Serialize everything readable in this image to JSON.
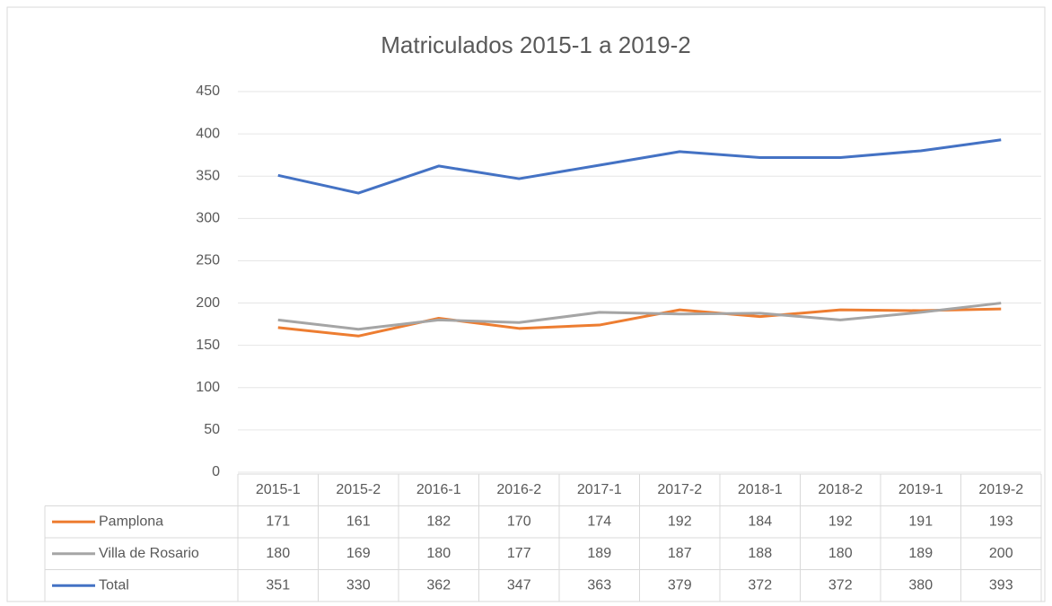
{
  "chart_data": {
    "type": "line",
    "title": "Matriculados 2015-1 a 2019-2",
    "categories": [
      "2015-1",
      "2015-2",
      "2016-1",
      "2016-2",
      "2017-1",
      "2017-2",
      "2018-1",
      "2018-2",
      "2019-1",
      "2019-2"
    ],
    "series": [
      {
        "name": "Pamplona",
        "color": "#ed7d31",
        "values": [
          171,
          161,
          182,
          170,
          174,
          192,
          184,
          192,
          191,
          193
        ]
      },
      {
        "name": "Villa de Rosario",
        "color": "#a5a5a5",
        "values": [
          180,
          169,
          180,
          177,
          189,
          187,
          188,
          180,
          189,
          200
        ]
      },
      {
        "name": "Total",
        "color": "#4472c4",
        "values": [
          351,
          330,
          362,
          347,
          363,
          379,
          372,
          372,
          380,
          393
        ]
      }
    ],
    "ylim": [
      0,
      450
    ],
    "yticks": [
      0,
      50,
      100,
      150,
      200,
      250,
      300,
      350,
      400,
      450
    ],
    "grid": true,
    "data_table": true
  }
}
